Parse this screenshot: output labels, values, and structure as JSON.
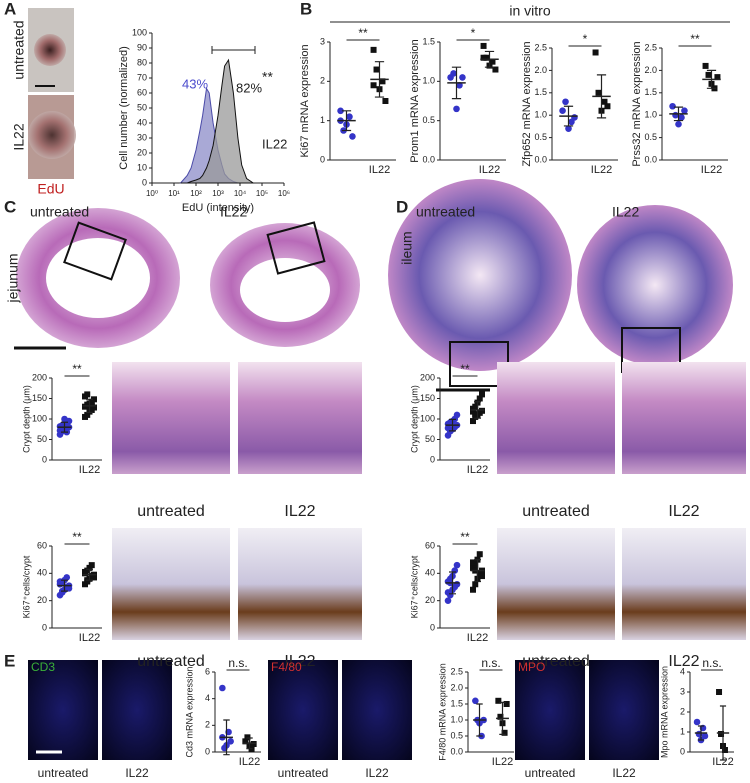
{
  "labels": [
    "A",
    "B",
    "C",
    "D",
    "E",
    "untreated",
    "IL22",
    "EdU",
    "in vitro",
    "untreated",
    "IL22",
    "jejunum",
    "untreated",
    "IL22",
    "untreated",
    "IL22",
    "untreated",
    "IL22",
    "ileum",
    "untreated",
    "IL22",
    "untreated",
    "IL22",
    "CD3",
    "F4/80",
    "MPO",
    "untreated",
    "IL22",
    "untreated",
    "IL22",
    "untreated",
    "IL22"
  ],
  "chart_data": [
    {
      "type": "histogram-curve",
      "xlabel": "EdU (intensity)",
      "ylabel": "Cell number (normalized)",
      "log_x": true,
      "x": [
        20,
        40,
        60,
        100,
        150,
        200,
        300,
        400,
        600,
        1000,
        1500,
        2000,
        3000,
        5000,
        8000,
        12000,
        20000,
        40000
      ],
      "series": [
        {
          "color": "#4a4aa8",
          "fill": "#8c8cc8",
          "values": [
            0,
            5,
            10,
            22,
            35,
            45,
            63,
            60,
            40,
            22,
            12,
            6,
            3,
            1,
            0,
            0,
            0,
            0
          ]
        },
        {
          "color": "#111111",
          "fill": "#9a9a9a",
          "values": [
            0,
            0,
            1,
            2,
            3,
            5,
            10,
            15,
            25,
            45,
            65,
            78,
            82,
            60,
            30,
            12,
            3,
            0
          ]
        }
      ],
      "annotations": [
        {
          "text": "43%",
          "color": "#4a4acc"
        },
        {
          "text": "82%",
          "color": "#222222"
        },
        {
          "text": "**",
          "color": "#222222"
        },
        {
          "text": "IL22",
          "color": "#222222"
        }
      ],
      "xlim": [
        1,
        1000000
      ],
      "xticks": [
        {
          "value": 1,
          "label": "10⁰"
        },
        {
          "value": 10,
          "label": "10¹"
        },
        {
          "value": 100,
          "label": "10²"
        },
        {
          "value": 1000,
          "label": "10³"
        },
        {
          "value": 10000,
          "label": "10⁴"
        },
        {
          "value": 100000,
          "label": "10⁵"
        },
        {
          "value": 1000000,
          "label": "10⁶"
        }
      ],
      "ylim": [
        0,
        100
      ],
      "yticks": [
        0,
        10,
        20,
        30,
        40,
        50,
        60,
        70,
        80,
        90,
        100
      ]
    },
    {
      "type": "strip",
      "ylabel": "Ki67 mRNA expression",
      "categories": [
        null,
        "IL22"
      ],
      "significance": "**",
      "ylim": [
        0,
        3
      ],
      "yticks": [
        0,
        1,
        2,
        3
      ],
      "groups": [
        {
          "color": "#3434c8",
          "marker": "circle",
          "points": [
            1.25,
            0.75,
            0.9,
            1.1,
            0.6,
            1.0
          ],
          "mean": 1.0,
          "error": 0.25
        },
        {
          "color": "#111111",
          "marker": "square",
          "points": [
            2.8,
            2.3,
            1.8,
            2.0,
            1.5,
            1.9
          ],
          "mean": 2.05,
          "error": 0.45
        }
      ]
    },
    {
      "type": "strip",
      "ylabel": "Prom1 mRNA expression",
      "categories": [
        null,
        "IL22"
      ],
      "significance": "*",
      "ylim": [
        0,
        1.5
      ],
      "yticks": [
        {
          "value": 0,
          "label": "0.0"
        },
        0.5,
        {
          "value": 1,
          "label": "1.0"
        },
        1.5
      ],
      "groups": [
        {
          "color": "#3434c8",
          "marker": "circle",
          "points": [
            1.05,
            1.1,
            0.65,
            0.95,
            1.05
          ],
          "mean": 0.98,
          "error": 0.2
        },
        {
          "color": "#111111",
          "marker": "square",
          "points": [
            1.45,
            1.3,
            1.2,
            1.25,
            1.15,
            1.3
          ],
          "mean": 1.28,
          "error": 0.1
        }
      ]
    },
    {
      "type": "strip",
      "ylabel": "Zfp652 mRNA expression",
      "categories": [
        null,
        "IL22"
      ],
      "significance": "*",
      "ylim": [
        0,
        2.5
      ],
      "yticks": [
        {
          "value": 0,
          "label": "0.0"
        },
        0.5,
        {
          "value": 1,
          "label": "1.0"
        },
        1.5,
        {
          "value": 2,
          "label": "2.0"
        },
        2.5
      ],
      "groups": [
        {
          "color": "#3434c8",
          "marker": "circle",
          "points": [
            1.1,
            1.3,
            0.7,
            0.85,
            0.95
          ],
          "mean": 0.98,
          "error": 0.22
        },
        {
          "color": "#111111",
          "marker": "square",
          "points": [
            2.4,
            1.5,
            1.1,
            1.3,
            1.2
          ],
          "mean": 1.42,
          "error": 0.48
        }
      ]
    },
    {
      "type": "strip",
      "ylabel": "Prss32 mRNA expression",
      "categories": [
        null,
        "IL22"
      ],
      "significance": "**",
      "ylim": [
        0,
        2.5
      ],
      "yticks": [
        {
          "value": 0,
          "label": "0.0"
        },
        0.5,
        {
          "value": 1,
          "label": "1.0"
        },
        1.5,
        {
          "value": 2,
          "label": "2.0"
        },
        2.5
      ],
      "groups": [
        {
          "color": "#3434c8",
          "marker": "circle",
          "points": [
            1.2,
            1.0,
            0.8,
            0.95,
            1.1
          ],
          "mean": 1.03,
          "error": 0.15
        },
        {
          "color": "#111111",
          "marker": "square",
          "points": [
            2.1,
            1.9,
            1.7,
            1.6,
            1.85
          ],
          "mean": 1.8,
          "error": 0.2
        }
      ]
    },
    {
      "type": "strip",
      "ylabel": "Crypt depth (μm)",
      "categories": [
        null,
        "IL22"
      ],
      "significance": "**",
      "ylim": [
        0,
        200
      ],
      "yticks": [
        0,
        50,
        100,
        150,
        200
      ],
      "groups": [
        {
          "color": "#3434c8",
          "marker": "circle",
          "points": [
            62,
            70,
            75,
            78,
            80,
            82,
            85,
            88,
            90,
            95,
            72,
            84,
            100,
            68
          ],
          "mean": 80,
          "error": 12
        },
        {
          "color": "#111111",
          "marker": "square",
          "points": [
            105,
            110,
            118,
            122,
            128,
            130,
            135,
            138,
            142,
            148,
            155,
            160,
            125,
            133
          ],
          "mean": 132,
          "error": 16
        }
      ]
    },
    {
      "type": "strip",
      "ylabel": "Ki67⁺cells/crypt",
      "categories": [
        null,
        "IL22"
      ],
      "significance": "**",
      "ylim": [
        0,
        60
      ],
      "yticks": [
        0,
        20,
        40,
        60
      ],
      "groups": [
        {
          "color": "#3434c8",
          "marker": "circle",
          "points": [
            24,
            26,
            28,
            30,
            31,
            32,
            33,
            35,
            37,
            29,
            34,
            27
          ],
          "mean": 31,
          "error": 4
        },
        {
          "color": "#111111",
          "marker": "square",
          "points": [
            32,
            34,
            36,
            38,
            39,
            40,
            42,
            44,
            46,
            37,
            41,
            35
          ],
          "mean": 39,
          "error": 4
        }
      ]
    },
    {
      "type": "strip",
      "ylabel": "Crypt depth (μm)",
      "categories": [
        null,
        "IL22"
      ],
      "significance": "**",
      "ylim": [
        0,
        200
      ],
      "yticks": [
        0,
        50,
        100,
        150,
        200
      ],
      "groups": [
        {
          "color": "#3434c8",
          "marker": "circle",
          "points": [
            60,
            70,
            75,
            80,
            85,
            88,
            90,
            95,
            100,
            110,
            78,
            92
          ],
          "mean": 85,
          "error": 14
        },
        {
          "color": "#111111",
          "marker": "square",
          "points": [
            95,
            105,
            110,
            115,
            120,
            125,
            130,
            140,
            150,
            160,
            118,
            112
          ],
          "mean": 122,
          "error": 20
        }
      ]
    },
    {
      "type": "strip",
      "ylabel": "Ki67⁺cells/crypt",
      "categories": [
        null,
        "IL22"
      ],
      "significance": "**",
      "ylim": [
        0,
        60
      ],
      "yticks": [
        0,
        20,
        40,
        60
      ],
      "groups": [
        {
          "color": "#3434c8",
          "marker": "circle",
          "points": [
            20,
            24,
            28,
            30,
            32,
            34,
            36,
            38,
            42,
            46,
            26,
            33
          ],
          "mean": 33,
          "error": 8
        },
        {
          "color": "#111111",
          "marker": "square",
          "points": [
            28,
            32,
            36,
            40,
            42,
            44,
            46,
            50,
            54,
            38,
            48,
            42
          ],
          "mean": 42,
          "error": 8
        }
      ]
    },
    {
      "type": "strip",
      "ylabel": "Cd3 mRNA expression",
      "categories": [
        null,
        "IL22"
      ],
      "significance": "n.s.",
      "ylim": [
        0,
        6
      ],
      "yticks": [
        0,
        2,
        4,
        6
      ],
      "groups": [
        {
          "color": "#3434c8",
          "marker": "circle",
          "points": [
            4.8,
            0.3,
            0.5,
            1.5,
            0.8,
            1.1
          ],
          "mean": 1.1,
          "error": 1.3
        },
        {
          "color": "#111111",
          "marker": "square",
          "points": [
            0.8,
            1.1,
            0.5,
            0.2,
            0.6
          ],
          "mean": 0.65,
          "error": 0.4
        }
      ]
    },
    {
      "type": "strip",
      "ylabel": "F4/80 mRNA expression",
      "categories": [
        null,
        "IL22"
      ],
      "significance": "n.s.",
      "ylim": [
        0,
        2.5
      ],
      "yticks": [
        {
          "value": 0,
          "label": "0.0"
        },
        0.5,
        {
          "value": 1,
          "label": "1.0"
        },
        1.5,
        {
          "value": 2,
          "label": "2.0"
        },
        2.5
      ],
      "groups": [
        {
          "color": "#3434c8",
          "marker": "circle",
          "points": [
            1.6,
            1.0,
            0.9,
            0.5,
            1.0
          ],
          "mean": 1.0,
          "error": 0.5
        },
        {
          "color": "#111111",
          "marker": "square",
          "points": [
            1.6,
            1.1,
            0.9,
            0.6,
            1.5
          ],
          "mean": 1.05,
          "error": 0.5
        }
      ]
    },
    {
      "type": "strip",
      "ylabel": "Mpo mRNA expression",
      "categories": [
        null,
        "IL22"
      ],
      "significance": "n.s.",
      "ylim": [
        0,
        4
      ],
      "yticks": [
        0,
        1,
        2,
        3,
        4
      ],
      "groups": [
        {
          "color": "#3434c8",
          "marker": "circle",
          "points": [
            1.5,
            0.9,
            0.6,
            1.2,
            0.8
          ],
          "mean": 0.95,
          "error": 0.35
        },
        {
          "color": "#111111",
          "marker": "square",
          "points": [
            3.0,
            0.9,
            0.3,
            0.1
          ],
          "mean": 0.95,
          "error": 1.35
        }
      ]
    }
  ]
}
